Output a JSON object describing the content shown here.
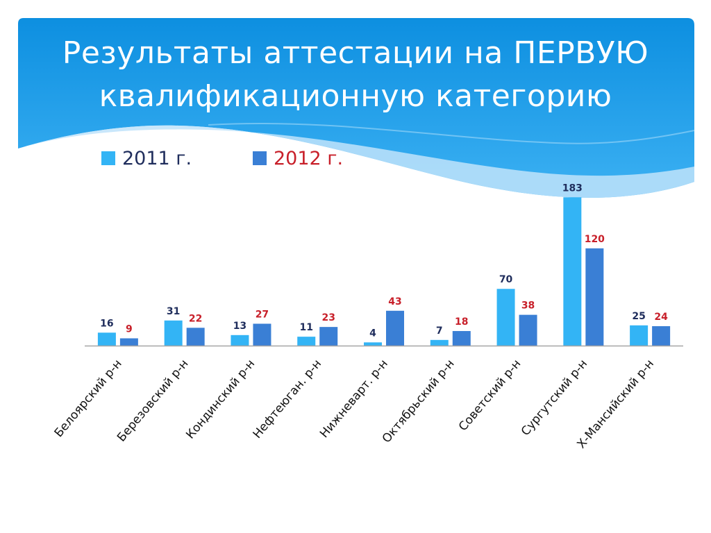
{
  "slide": {
    "title_line1": "Результаты аттестации на ПЕРВУЮ",
    "title_line2": "квалификационную категорию",
    "header_color": "#1a9ae6"
  },
  "legend": [
    {
      "label": "2011 г.",
      "color": "#33b4f5",
      "text_color": "#1f2d5c"
    },
    {
      "label": "2012 г.",
      "color": "#3a7fd5",
      "text_color": "#c8202a"
    }
  ],
  "chart_data": {
    "type": "bar",
    "categories": [
      "Белоярский р-н",
      "Березовский р-н",
      "Кондинский р-н",
      "Нефтеюган. р-н",
      "Нижневарт. р-н",
      "Октябрьский р-н",
      "Советский р-н",
      "Сургутский р-н",
      "Х-Мансийский р-н"
    ],
    "series": [
      {
        "name": "2011 г.",
        "values": [
          16,
          31,
          13,
          11,
          4,
          7,
          70,
          183,
          25
        ],
        "color": "#33b4f5",
        "label_color": "#1f2d5c"
      },
      {
        "name": "2012 г.",
        "values": [
          9,
          22,
          27,
          23,
          43,
          18,
          38,
          120,
          24
        ],
        "color": "#3a7fd5",
        "label_color": "#c8202a"
      }
    ],
    "title": "",
    "xlabel": "",
    "ylabel": "",
    "ylim": [
      0,
      200
    ],
    "grid": false,
    "legend_position": "top-left",
    "axis_color": "#a6a6a6"
  }
}
